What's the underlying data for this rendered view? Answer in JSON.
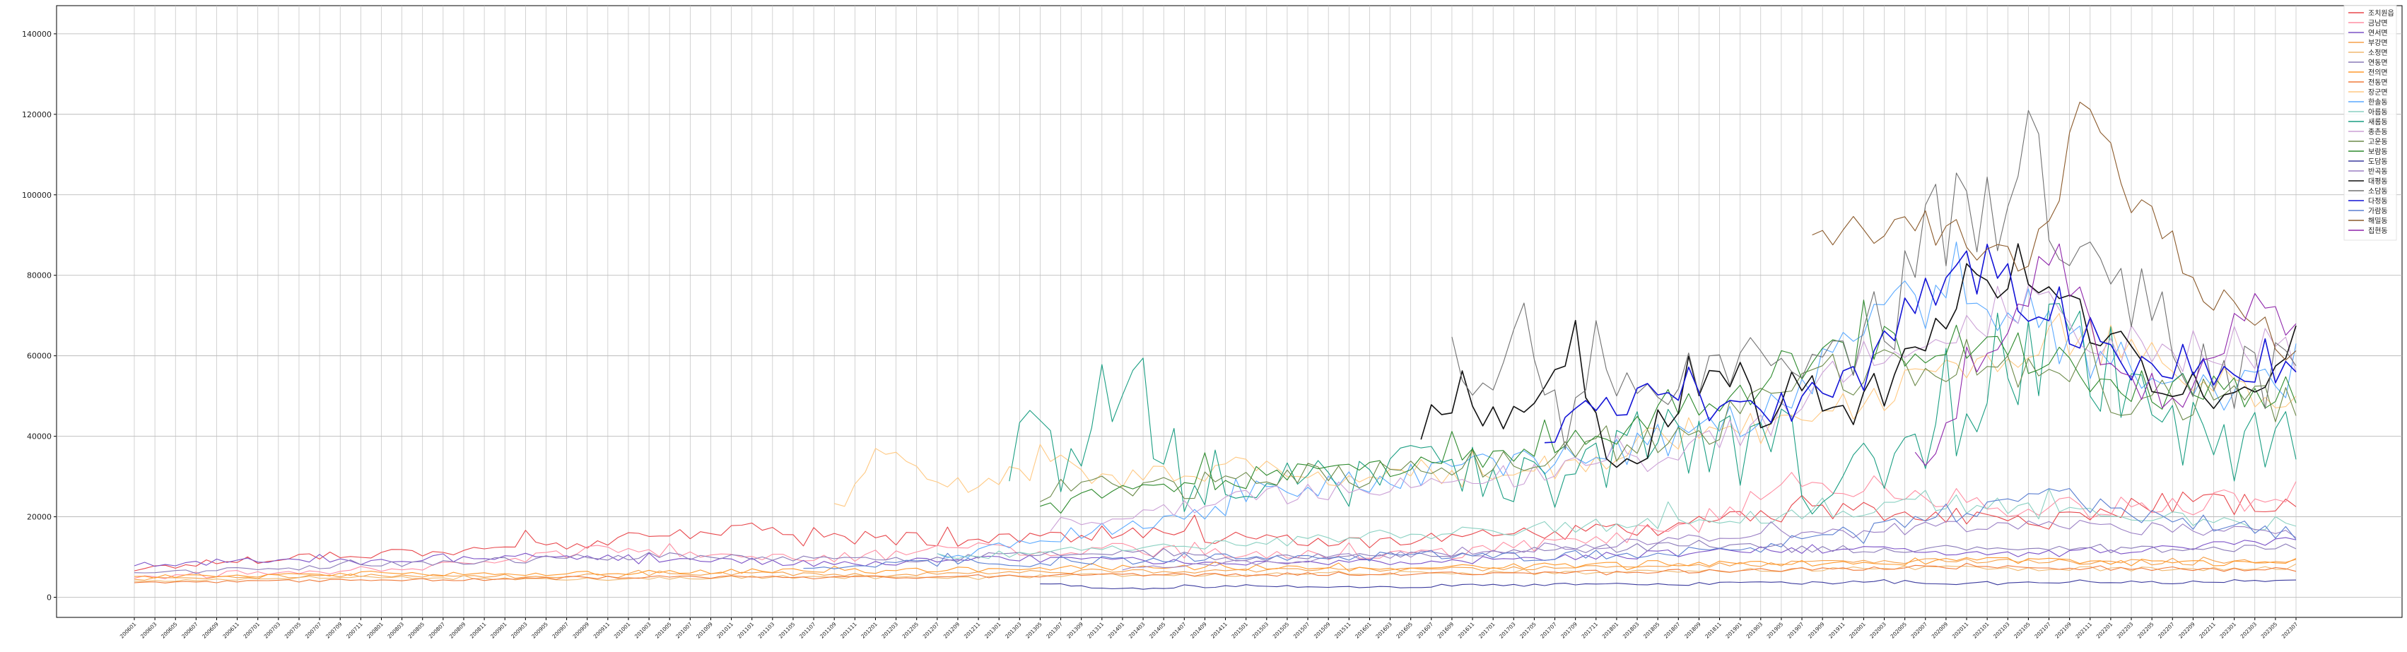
{
  "chart_data": {
    "type": "line",
    "title": "",
    "xlabel": "",
    "ylabel": "",
    "ylim": [
      -5000,
      147000
    ],
    "yticks": [
      0,
      20000,
      40000,
      60000,
      80000,
      100000,
      120000,
      140000
    ],
    "grid": true,
    "legend_position": "top-right",
    "x_start_month": "2006-01",
    "x_end_month": "2023-07",
    "series": [
      {
        "name": "조치원읍",
        "color": "#e8474c",
        "start": "2006-01",
        "anchors": [
          7000,
          9500,
          11000,
          12000,
          14000,
          17000,
          15000,
          14000,
          16000,
          15000,
          13500,
          15000,
          16000,
          18000,
          22000,
          20000,
          19000,
          24000,
          22000
        ],
        "amp": 0.12
      },
      {
        "name": "금남면",
        "color": "#ff8fa3",
        "start": "2006-01",
        "anchors": [
          5000,
          6000,
          7000,
          9000,
          12000,
          11000,
          10000,
          12000,
          12000,
          11000,
          10000,
          11000,
          14000,
          18000,
          30000,
          25000,
          22000,
          22000,
          26000
        ],
        "amp": 0.14
      },
      {
        "name": "연서면",
        "color": "#7b52c7",
        "start": "2006-01",
        "anchors": [
          8000,
          9000,
          9000,
          10000,
          10000,
          9000,
          8000,
          10000,
          9000,
          9000,
          8500,
          9000,
          10000,
          11000,
          12000,
          11000,
          11000,
          12000,
          14000
        ],
        "amp": 0.1
      },
      {
        "name": "부강면",
        "color": "#f5a04a",
        "start": "2006-01",
        "anchors": [
          4500,
          5000,
          5500,
          5000,
          5500,
          6000,
          5500,
          6000,
          6500,
          6500,
          7000,
          7000,
          7500,
          8000,
          8500,
          9000,
          9000,
          8500,
          9000
        ],
        "amp": 0.08
      },
      {
        "name": "소정면",
        "color": "#f0b870",
        "start": "2006-01",
        "anchors": [
          4000,
          4500,
          5000,
          4500,
          4500,
          5000,
          5000,
          5000,
          5500,
          5500,
          6000,
          6000,
          6000,
          6500,
          7000,
          7500,
          7000,
          7000,
          7500
        ],
        "amp": 0.08
      },
      {
        "name": "연동면",
        "color": "#8a7ab8",
        "start": "2006-01",
        "anchors": [
          6000,
          7000,
          8000,
          9000,
          10000,
          10500,
          9000,
          10000,
          11000,
          10000,
          10000,
          11000,
          12000,
          13000,
          12000,
          12000,
          12000,
          12000,
          13000
        ],
        "amp": 0.1
      },
      {
        "name": "전의면",
        "color": "#ff9a2e",
        "start": "2006-01",
        "anchors": [
          5000,
          5500,
          6000,
          5500,
          6000,
          6500,
          6500,
          7000,
          7500,
          7500,
          7000,
          7500,
          8000,
          8500,
          8500,
          9000,
          9000,
          8500,
          9000
        ],
        "amp": 0.1
      },
      {
        "name": "전동면",
        "color": "#f07a3a",
        "start": "2006-01",
        "anchors": [
          3500,
          4000,
          4200,
          4500,
          5000,
          5000,
          4800,
          5200,
          5500,
          5500,
          5800,
          6000,
          6200,
          6500,
          7000,
          7500,
          7500,
          7000,
          6800
        ],
        "amp": 0.08
      },
      {
        "name": "장군면",
        "color": "#ffc983",
        "start": "2011-09",
        "anchors": [
          22000,
          36000,
          28000,
          30000,
          33000,
          30000,
          31000,
          33000,
          31000,
          29000,
          32000,
          30000,
          31000,
          33000,
          36000,
          40000,
          45000,
          42000,
          48000,
          52000,
          58000,
          62000,
          65000,
          60000,
          58000,
          50000,
          48000
        ],
        "amp": 0.1
      },
      {
        "name": "한솔동",
        "color": "#5aa9ff",
        "start": "2012-07",
        "anchors": [
          10000,
          12000,
          16000,
          18000,
          22000,
          26000,
          28000,
          30000,
          32000,
          34000,
          36000,
          40000,
          46000,
          55000,
          70000,
          80000,
          70000,
          60000,
          55000,
          52000,
          55000
        ],
        "amp": 0.12
      },
      {
        "name": "아름동",
        "color": "#8bd1c2",
        "start": "2012-07",
        "anchors": [
          10000,
          11000,
          12000,
          13000,
          14000,
          15000,
          16000,
          17000,
          18000,
          19000,
          20000,
          22000,
          24000,
          22000,
          20000,
          19000,
          18000
        ],
        "amp": 0.1
      },
      {
        "name": "새롬동",
        "color": "#1a9e82",
        "start": "2013-02",
        "anchors": [
          40000,
          33000,
          60000,
          28000,
          30000,
          26000,
          28000,
          30000,
          32000,
          28000,
          35000,
          40000,
          35000,
          40000,
          30000,
          35000,
          40000,
          60000,
          70000,
          50000,
          40000,
          35000,
          45000
        ],
        "amp": 0.28
      },
      {
        "name": "종촌동",
        "color": "#cba0d6",
        "start": "2013-06",
        "anchors": [
          18000,
          20000,
          22000,
          25000,
          26000,
          27000,
          28000,
          30000,
          32000,
          34000,
          38000,
          45000,
          58000,
          62000,
          70000,
          75000,
          66000,
          60000,
          62000,
          60000
        ],
        "amp": 0.1
      },
      {
        "name": "고운동",
        "color": "#6c8a4a",
        "start": "2013-05",
        "anchors": [
          26000,
          28000,
          27000,
          29000,
          30000,
          31000,
          33000,
          34000,
          36000,
          38000,
          42000,
          48000,
          55000,
          60000,
          58000,
          55000,
          52000,
          50000,
          48000,
          50000
        ],
        "amp": 0.12
      },
      {
        "name": "보람동",
        "color": "#2d8a2d",
        "start": "2013-05",
        "anchors": [
          24000,
          26000,
          28000,
          30000,
          32000,
          33000,
          35000,
          37000,
          40000,
          45000,
          52000,
          58000,
          62000,
          65000,
          60000,
          55000,
          52000,
          50000,
          50000
        ],
        "amp": 0.1
      },
      {
        "name": "도담동",
        "color": "#3b3b9e",
        "start": "2013-05",
        "anchors": [
          3500,
          2000,
          2500,
          3000,
          2500,
          2500,
          3000,
          3000,
          3500,
          3000,
          3500,
          3500,
          4000,
          3500,
          3500,
          4000,
          3500,
          4000,
          4500
        ],
        "amp": 0.12
      },
      {
        "name": "반곡동",
        "color": "#9a7fc4",
        "start": "2014-01",
        "anchors": [
          7000,
          8000,
          9000,
          10000,
          11000,
          12000,
          13000,
          14000,
          15000,
          16000,
          17000,
          18000,
          18000,
          17000,
          17000,
          16000
        ],
        "amp": 0.1
      },
      {
        "name": "대평동",
        "color": "#111111",
        "start": "2016-06",
        "anchors": [
          40000,
          52000,
          42000,
          48000,
          68000,
          30000,
          38000,
          55000,
          58000,
          45000,
          52000,
          48000,
          50000,
          58000,
          72000,
          85000,
          80000,
          70000,
          65000,
          60000,
          50000,
          50000,
          55000,
          62000
        ],
        "amp": 0.12
      },
      {
        "name": "소담동",
        "color": "#707070",
        "start": "2016-09",
        "anchors": [
          65000,
          50000,
          72000,
          40000,
          70000,
          45000,
          50000,
          60000,
          55000,
          60000,
          58000,
          62000,
          70000,
          95000,
          90000,
          100000,
          110000,
          80000,
          75000,
          70000,
          60000,
          55000,
          55000,
          60000
        ],
        "amp": 0.16
      },
      {
        "name": "다정동",
        "color": "#1414d6",
        "start": "2017-06",
        "anchors": [
          38000,
          45000,
          50000,
          48000,
          52000,
          46000,
          48000,
          50000,
          58000,
          75000,
          82000,
          80000,
          72000,
          65000,
          60000,
          58000,
          55000,
          58000,
          60000
        ],
        "amp": 0.1
      },
      {
        "name": "가람동",
        "color": "#5b7fd1",
        "start": "2011-06",
        "anchors": [
          7000,
          8000,
          9000,
          8500,
          9000,
          10000,
          9500,
          10000,
          11000,
          10000,
          10500,
          11000,
          12000,
          15000,
          18000,
          22000,
          25000,
          20000,
          18000,
          16000
        ],
        "amp": 0.12
      },
      {
        "name": "해밀동",
        "color": "#8b5a2b",
        "start": "2019-08",
        "anchors": [
          88000,
          90000,
          93000,
          88000,
          80000,
          120000,
          100000,
          80000,
          70000,
          60000
        ],
        "amp": 0.06
      },
      {
        "name": "집현동",
        "color": "#8e24aa",
        "start": "2020-06",
        "anchors": [
          30000,
          50000,
          70000,
          85000,
          60000,
          45000,
          55000,
          70000,
          65000
        ],
        "amp": 0.08
      }
    ]
  }
}
